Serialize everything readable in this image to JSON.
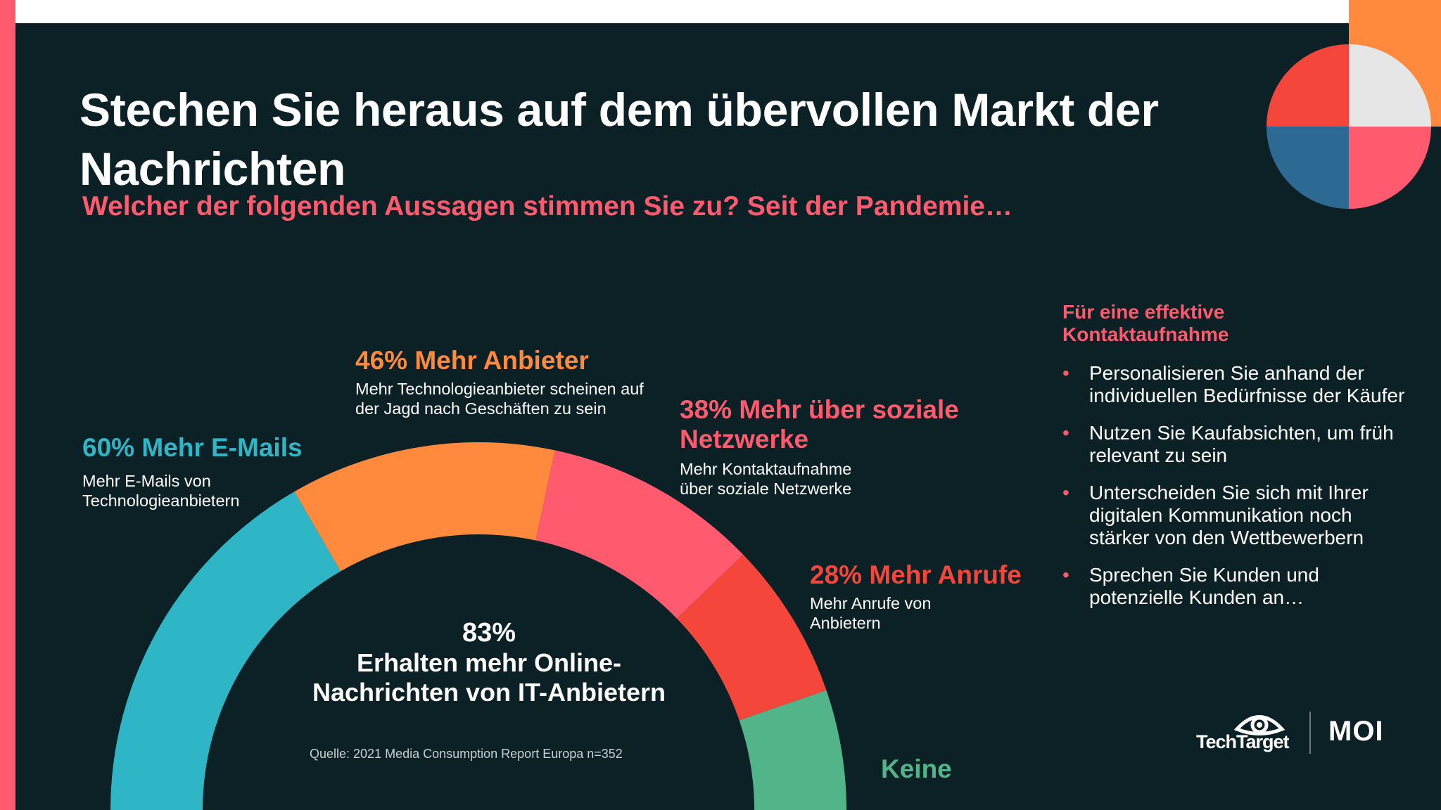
{
  "slide": {
    "title": "Stechen Sie heraus auf dem übervollen Markt der Nachrichten",
    "subtitle": "Welcher der folgenden Aussagen stimmen Sie zu? Seit der Pandemie…",
    "center_percent": "83%",
    "center_text": "Erhalten mehr Online-Nachrichten von IT-Anbietern",
    "source": "Quelle: 2021 Media Consumption Report Europa n=352",
    "tips_title": "Für eine effektive Kontaktaufnahme",
    "tips": [
      "Personalisieren Sie anhand der individuellen Bedürfnisse der Käufer",
      "Nutzen Sie Kaufabsichten, um früh relevant zu sein",
      "Unterscheiden Sie sich mit Ihrer digitalen Kommunikation noch stärker von den Wettbewerbern",
      "Sprechen Sie Kunden und potenzielle Kunden an…"
    ],
    "logos": {
      "techtarget": "TechTarget",
      "moi": "MOI"
    }
  },
  "colors": {
    "background": "#0b2126",
    "teal": "#2fb6c6",
    "orange": "#ff8a3d",
    "pink": "#ff5a6e",
    "red": "#f4463a",
    "green": "#52b58a",
    "blue": "#2c6a93",
    "light_gray": "#e6e6e6",
    "white": "#ffffff"
  },
  "chart_data": {
    "type": "pie",
    "title": "",
    "series": [
      {
        "name": "Mehr E-Mails",
        "value": 60,
        "label": "60% Mehr E-Mails",
        "description": "Mehr E-Mails von Technologieanbietern",
        "color": "#2fb6c6"
      },
      {
        "name": "Mehr Anbieter",
        "value": 46,
        "label": "46% Mehr Anbieter",
        "description": "Mehr Technologieanbieter scheinen auf der Jagd nach Geschäften zu sein",
        "color": "#ff8a3d"
      },
      {
        "name": "Mehr über soziale Netzwerke",
        "value": 38,
        "label": "38% Mehr über soziale Netzwerke",
        "description": "Mehr Kontaktaufnahme über soziale Netzwerke",
        "color": "#ff5a6e"
      },
      {
        "name": "Mehr Anrufe",
        "value": 28,
        "label": "28% Mehr Anrufe",
        "description": "Mehr Anrufe von Anbietern",
        "color": "#f4463a"
      },
      {
        "name": "Keine",
        "value": null,
        "label": "Keine",
        "description": "",
        "color": "#52b58a"
      }
    ]
  }
}
